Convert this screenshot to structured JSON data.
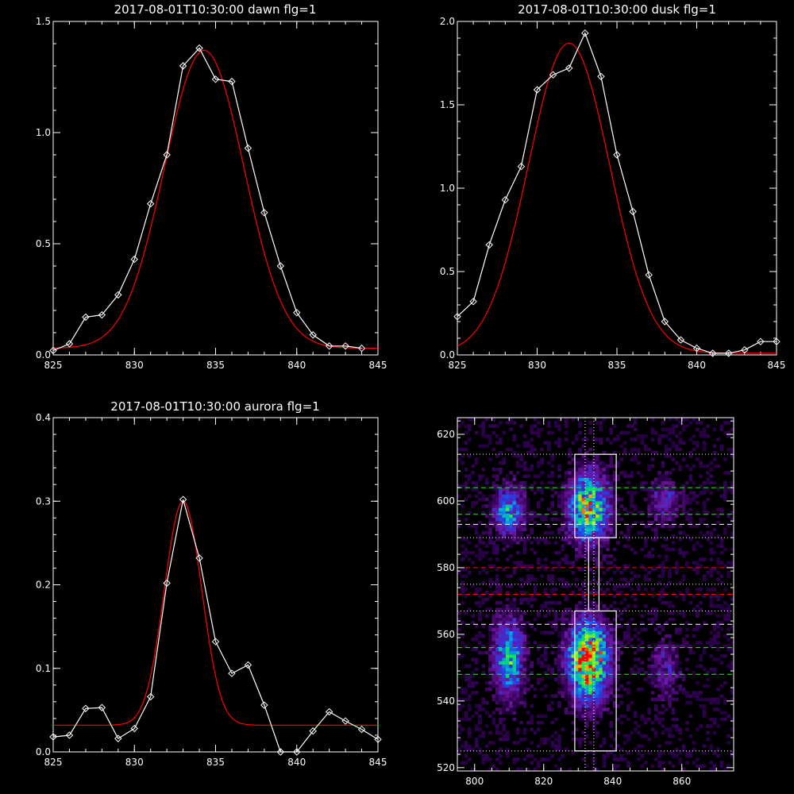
{
  "chart_data": [
    {
      "id": "dawn",
      "type": "line",
      "title": "2017-08-01T10:30:00 dawn flg=1",
      "xlim": [
        825,
        845
      ],
      "ylim": [
        0,
        1.5
      ],
      "xticks": [
        "825",
        "830",
        "835",
        "840",
        "845"
      ],
      "yticks": [
        "0.0",
        "0.5",
        "1.0",
        "1.5"
      ],
      "colors": {
        "data": "#ffffff",
        "fit": "#ff0000"
      },
      "series": [
        {
          "x": [
            825,
            826,
            827,
            828,
            829,
            830,
            831,
            832,
            833,
            834,
            835,
            836,
            837,
            838,
            839,
            840,
            841,
            842,
            843,
            844
          ],
          "y": [
            0.02,
            0.05,
            0.17,
            0.18,
            0.27,
            0.43,
            0.68,
            0.9,
            1.3,
            1.38,
            1.24,
            1.23,
            0.93,
            0.64,
            0.4,
            0.19,
            0.09,
            0.04,
            0.04,
            0.03
          ],
          "markers": true
        },
        {
          "fit": {
            "amp": 1.34,
            "mu": 834.3,
            "sigma": 2.45,
            "base": 0.03
          }
        }
      ]
    },
    {
      "id": "dusk",
      "type": "line",
      "title": "2017-08-01T10:30:00 dusk flg=1",
      "xlim": [
        825,
        845
      ],
      "ylim": [
        0,
        2.0
      ],
      "xticks": [
        "825",
        "830",
        "835",
        "840",
        "845"
      ],
      "yticks": [
        "0.0",
        "0.5",
        "1.0",
        "1.5",
        "2.0"
      ],
      "colors": {
        "data": "#ffffff",
        "fit": "#ff0000"
      },
      "series": [
        {
          "x": [
            825,
            826,
            827,
            828,
            829,
            830,
            831,
            832,
            833,
            834,
            835,
            836,
            837,
            838,
            839,
            840,
            841,
            842,
            843,
            844,
            845
          ],
          "y": [
            0.23,
            0.32,
            0.66,
            0.93,
            1.13,
            1.59,
            1.68,
            1.72,
            1.93,
            1.67,
            1.2,
            0.86,
            0.48,
            0.2,
            0.09,
            0.04,
            0.01,
            0.01,
            0.03,
            0.08,
            0.08
          ],
          "markers": true
        },
        {
          "fit": {
            "amp": 1.86,
            "mu": 832.0,
            "sigma": 2.55,
            "base": 0.01
          }
        }
      ]
    },
    {
      "id": "aurora",
      "type": "line",
      "title": "2017-08-01T10:30:00 aurora flg=1",
      "xlim": [
        825,
        845
      ],
      "ylim": [
        0,
        0.4
      ],
      "xticks": [
        "825",
        "830",
        "835",
        "840",
        "845"
      ],
      "yticks": [
        "0.0",
        "0.1",
        "0.2",
        "0.3",
        "0.4"
      ],
      "colors": {
        "data": "#ffffff",
        "fit": "#ff0000"
      },
      "series": [
        {
          "x": [
            825,
            826,
            827,
            828,
            829,
            830,
            831,
            832,
            833,
            834,
            835,
            836,
            837,
            838,
            839,
            840,
            841,
            842,
            843,
            844,
            845
          ],
          "y": [
            0.018,
            0.02,
            0.052,
            0.053,
            0.016,
            0.028,
            0.066,
            0.202,
            0.302,
            0.232,
            0.132,
            0.094,
            0.104,
            0.056,
            0.0,
            0.0,
            0.025,
            0.048,
            0.037,
            0.027,
            0.015
          ],
          "markers": true
        },
        {
          "fit": {
            "amp": 0.268,
            "mu": 833.0,
            "sigma": 1.15,
            "base": 0.032
          }
        }
      ]
    },
    {
      "id": "image",
      "type": "heatmap",
      "xlim": [
        795,
        875
      ],
      "ylim": [
        519,
        625
      ],
      "xticks": [
        "800",
        "820",
        "840",
        "860"
      ],
      "yticks": [
        "520",
        "540",
        "560",
        "580",
        "600",
        "620"
      ],
      "blobs": [
        {
          "x": 833,
          "y": 598,
          "sx": 4,
          "sy": 7,
          "amp": 0.75
        },
        {
          "x": 833,
          "y": 552,
          "sx": 4,
          "sy": 8,
          "amp": 0.95
        },
        {
          "x": 810,
          "y": 597,
          "sx": 3,
          "sy": 5,
          "amp": 0.5
        },
        {
          "x": 810,
          "y": 553,
          "sx": 3,
          "sy": 8,
          "amp": 0.55
        },
        {
          "x": 855,
          "y": 600,
          "sx": 3,
          "sy": 5,
          "amp": 0.25
        },
        {
          "x": 855,
          "y": 550,
          "sx": 3,
          "sy": 6,
          "amp": 0.22
        }
      ],
      "boxes": [
        {
          "x0": 829,
          "x1": 841,
          "y0": 589,
          "y1": 614
        },
        {
          "x0": 829,
          "x1": 841,
          "y0": 525,
          "y1": 567
        },
        {
          "x0": 833,
          "x1": 836,
          "y0": 567,
          "y1": 589
        }
      ],
      "hlines": [
        {
          "y": 614,
          "color": "#ffffff",
          "style": "dotted"
        },
        {
          "y": 604,
          "color": "#00ff00",
          "style": "dashed"
        },
        {
          "y": 596,
          "color": "#00ff00",
          "style": "dashed"
        },
        {
          "y": 593,
          "color": "#ffffff",
          "style": "dashed"
        },
        {
          "y": 589,
          "color": "#ffffff",
          "style": "dotted"
        },
        {
          "y": 580,
          "color": "#ff0000",
          "style": "dashed"
        },
        {
          "y": 575,
          "color": "#ffffff",
          "style": "dotted"
        },
        {
          "y": 572,
          "color": "#ff0000",
          "style": "dashed"
        },
        {
          "y": 567,
          "color": "#ffffff",
          "style": "dotted"
        },
        {
          "y": 563,
          "color": "#ffffff",
          "style": "dashed"
        },
        {
          "y": 556,
          "color": "#00ff00",
          "style": "dashed"
        },
        {
          "y": 548,
          "color": "#00ff00",
          "style": "dashed"
        },
        {
          "y": 525,
          "color": "#ffffff",
          "style": "dotted"
        }
      ],
      "vlines": [
        {
          "x": 832,
          "color": "#ffffff",
          "style": "dotted"
        },
        {
          "x": 834.5,
          "color": "#ffffff",
          "style": "dotted"
        }
      ]
    }
  ]
}
